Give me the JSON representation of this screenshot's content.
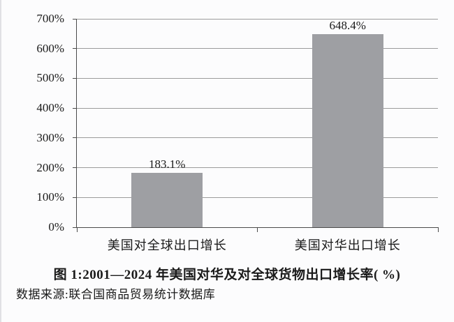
{
  "chart_data": {
    "type": "bar",
    "title": "图 1:2001—2024 年美国对华及对全球货物出口增长率( %)",
    "categories": [
      "美国对全球出口增长",
      "美国对华出口增长"
    ],
    "values": [
      183.1,
      648.4
    ],
    "value_labels": [
      "183.1%",
      "648.4%"
    ],
    "xlabel": "",
    "ylabel": "",
    "ylim": [
      0,
      700
    ],
    "ytick_step": 100,
    "ytick_labels": [
      "0%",
      "100%",
      "200%",
      "300%",
      "400%",
      "500%",
      "600%",
      "700%"
    ],
    "grid": true,
    "legend_position": "none",
    "bar_color": "#9e9fa3",
    "axis_color": "#4a4a4a",
    "gridline_color": "#9b9b9b",
    "source": "数据来源:联合国商品贸易统计数据库"
  },
  "caption": "图 1:2001—2024 年美国对华及对全球货物出口增长率( %)",
  "source_note": "数据来源:联合国商品贸易统计数据库"
}
